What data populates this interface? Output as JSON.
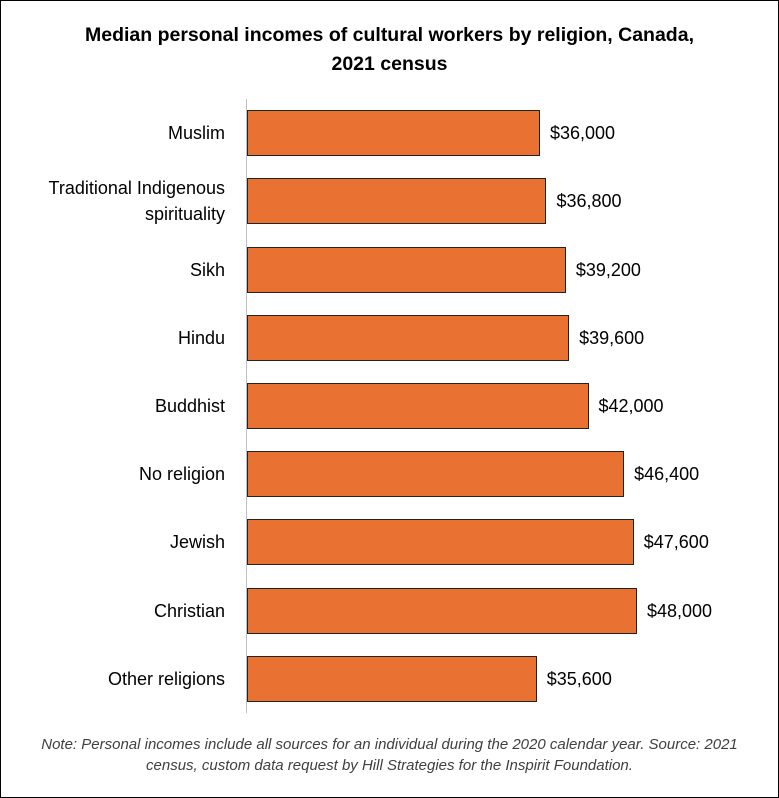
{
  "chart_data": {
    "type": "bar",
    "orientation": "horizontal",
    "title": "Median personal incomes of cultural workers by religion, Canada, 2021 census",
    "categories": [
      "Muslim",
      "Traditional Indigenous spirituality",
      "Sikh",
      "Hindu",
      "Buddhist",
      "No religion",
      "Jewish",
      "Christian",
      "Other religions"
    ],
    "values": [
      36000,
      36800,
      39200,
      39600,
      42000,
      46400,
      47600,
      48000,
      35600
    ],
    "value_labels": [
      "$36,000",
      "$36,800",
      "$39,200",
      "$39,600",
      "$42,000",
      "$46,400",
      "$47,600",
      "$48,000",
      "$35,600"
    ],
    "color": "#e97132",
    "note": "Note: Personal incomes include all sources for an individual during the 2020 calendar year. Source: 2021 census, custom data request by Hill Strategies for the Inspirit Foundation."
  }
}
